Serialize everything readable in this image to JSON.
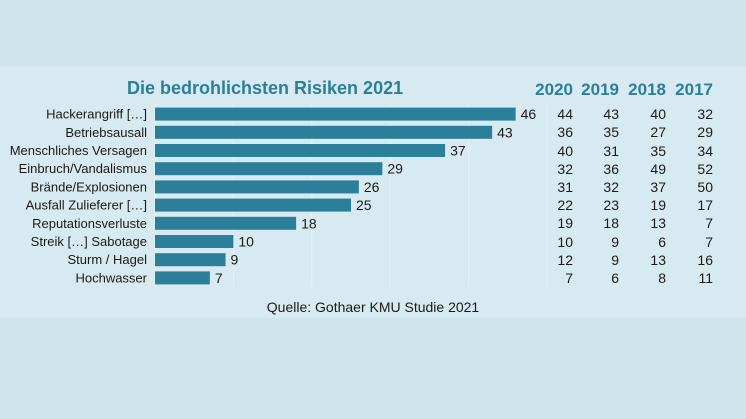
{
  "chart_data": {
    "type": "bar",
    "orientation": "horizontal",
    "title": "Die bedrohlichsten Risiken 2021",
    "categories": [
      "Hackerangriff […]",
      "Betriebsausall",
      "Menschliches Versagen",
      "Einbruch/Vandalismus",
      "Brände/Explosionen",
      "Ausfall Zulieferer […]",
      "Reputationsverluste",
      "Streik […] Sabotage",
      "Sturm / Hagel",
      "Hochwasser"
    ],
    "values": [
      46,
      43,
      37,
      29,
      26,
      25,
      18,
      10,
      9,
      7
    ],
    "xlim": [
      0,
      50
    ],
    "grid": true,
    "bar_color": "#2b7f98",
    "table": {
      "headers": [
        "2020",
        "2019",
        "2018",
        "2017"
      ],
      "rows": [
        [
          44,
          43,
          40,
          32
        ],
        [
          36,
          35,
          27,
          29
        ],
        [
          40,
          31,
          35,
          34
        ],
        [
          32,
          36,
          49,
          52
        ],
        [
          31,
          32,
          37,
          50
        ],
        [
          22,
          23,
          19,
          17
        ],
        [
          19,
          18,
          13,
          7
        ],
        [
          10,
          9,
          6,
          7
        ],
        [
          12,
          9,
          13,
          16
        ],
        [
          7,
          6,
          8,
          11
        ]
      ]
    }
  },
  "source": "Quelle: Gothaer KMU Studie 2021",
  "colors": {
    "accent": "#2b7f98",
    "background": "#cfe3ea",
    "panel": "#d8eaf1"
  }
}
